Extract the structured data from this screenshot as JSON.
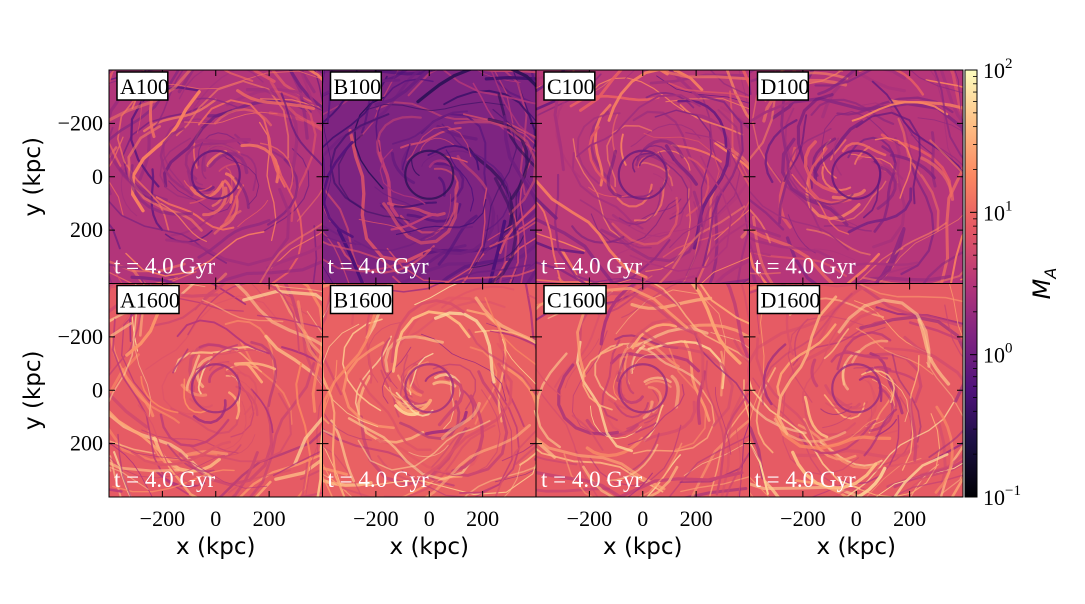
{
  "chart_data": {
    "type": "heatmap",
    "title": "",
    "quantity": "M_A",
    "colormap": "magma",
    "color_scale": "log",
    "clim": [
      0.1,
      100
    ],
    "xlabel": "x  (kpc)",
    "ylabel": "y  (kpc)",
    "xlim": [
      -400,
      400
    ],
    "ylim": [
      -400,
      400
    ],
    "x_ticks": [
      -200,
      0,
      200
    ],
    "y_ticks": [
      -200,
      0,
      200
    ],
    "x_tick_labels": [
      "−200",
      "0",
      "200"
    ],
    "y_tick_labels": [
      "200",
      "0",
      "−200"
    ],
    "colorbar": {
      "label_base": "M",
      "label_sub": "A",
      "ticks": [
        0.1,
        1,
        10,
        100
      ],
      "tick_labels": [
        {
          "base": "10",
          "exp": "−1"
        },
        {
          "base": "10",
          "exp": "0"
        },
        {
          "base": "10",
          "exp": "1"
        },
        {
          "base": "10",
          "exp": "2"
        }
      ]
    },
    "panels": [
      {
        "name": "A100",
        "time": "t = 4.0 Gyr",
        "row": 0,
        "col": 0,
        "median_MA": 3.0
      },
      {
        "name": "B100",
        "time": "t = 4.0 Gyr",
        "row": 0,
        "col": 1,
        "median_MA": 1.3
      },
      {
        "name": "C100",
        "time": "t = 4.0 Gyr",
        "row": 0,
        "col": 2,
        "median_MA": 3.5
      },
      {
        "name": "D100",
        "time": "t = 4.0 Gyr",
        "row": 0,
        "col": 3,
        "median_MA": 3.2
      },
      {
        "name": "A1600",
        "time": "t = 4.0 Gyr",
        "row": 1,
        "col": 0,
        "median_MA": 8.0
      },
      {
        "name": "B1600",
        "time": "t = 4.0 Gyr",
        "row": 1,
        "col": 1,
        "median_MA": 9.0
      },
      {
        "name": "C1600",
        "time": "t = 4.0 Gyr",
        "row": 1,
        "col": 2,
        "median_MA": 8.0
      },
      {
        "name": "D1600",
        "time": "t = 4.0 Gyr",
        "row": 1,
        "col": 3,
        "median_MA": 8.0
      }
    ]
  }
}
